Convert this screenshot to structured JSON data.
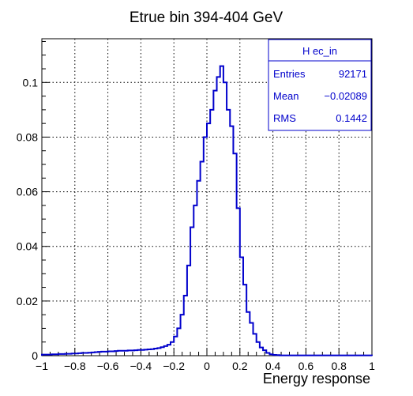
{
  "chart_data": {
    "type": "histogram",
    "title": "Etrue bin 394-404 GeV",
    "xlabel": "Energy response",
    "ylabel": "",
    "xlim": [
      -1,
      1
    ],
    "ylim": [
      0,
      0.116
    ],
    "grid": true,
    "x_ticks": [
      -1,
      -0.8,
      -0.6,
      -0.4,
      -0.2,
      0,
      0.2,
      0.4,
      0.6,
      0.8,
      1
    ],
    "x_tick_labels": [
      "−1",
      "−0.8",
      "−0.6",
      "−0.4",
      "−0.2",
      "0",
      "0.2",
      "0.4",
      "0.6",
      "0.8",
      "1"
    ],
    "y_ticks": [
      0,
      0.02,
      0.04,
      0.06,
      0.08,
      0.1
    ],
    "y_tick_labels": [
      "0",
      "0.02",
      "0.04",
      "0.06",
      "0.08",
      "0.1"
    ],
    "line_color": "#0000cc",
    "bin_edges_start": -1,
    "bin_width": 0.02,
    "values": [
      0.0004,
      0.0004,
      0.0004,
      0.0005,
      0.0005,
      0.0006,
      0.0006,
      0.0007,
      0.0007,
      0.0008,
      0.0008,
      0.0009,
      0.001,
      0.001,
      0.0011,
      0.0012,
      0.0013,
      0.0014,
      0.0015,
      0.0015,
      0.0016,
      0.0016,
      0.0017,
      0.0018,
      0.0018,
      0.0018,
      0.0019,
      0.0019,
      0.002,
      0.0021,
      0.0021,
      0.0022,
      0.0023,
      0.0024,
      0.0026,
      0.0028,
      0.0031,
      0.0035,
      0.004,
      0.005,
      0.007,
      0.01,
      0.015,
      0.022,
      0.033,
      0.047,
      0.055,
      0.064,
      0.071,
      0.08,
      0.085,
      0.09,
      0.097,
      0.102,
      0.106,
      0.1,
      0.09,
      0.084,
      0.074,
      0.054,
      0.036,
      0.026,
      0.016,
      0.012,
      0.008,
      0.005,
      0.003,
      0.002,
      0.001,
      0.0005,
      0.0003,
      0.0002,
      0.0001,
      0.0001,
      0.0001,
      0.0001,
      0.0001,
      0.0001,
      0.0001,
      0.0001,
      0.0001,
      0.0001,
      0.0001,
      0.0001,
      0.0001,
      0.0001,
      0.0001,
      0.0001,
      0.0001,
      0.0001,
      0.0001,
      0.0001,
      0.0001,
      0.0001,
      0.0001,
      0.0001,
      0.0001,
      0.0001,
      0.0001,
      0.0001
    ]
  },
  "stats_box": {
    "name": "H ec_in",
    "rows": [
      {
        "label": "Entries",
        "value": "92171"
      },
      {
        "label": "Mean",
        "value": "−0.02089"
      },
      {
        "label": "RMS",
        "value": "0.1442"
      }
    ]
  }
}
